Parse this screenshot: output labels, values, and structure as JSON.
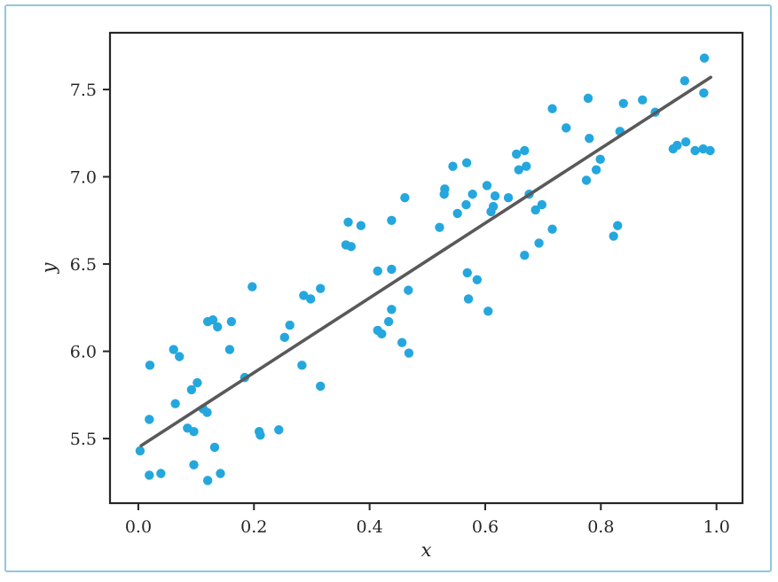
{
  "page": {
    "background_color": "#ffffff",
    "frame_color": "#8ec8de"
  },
  "chart_data": {
    "type": "scatter",
    "title": "",
    "xlabel": "x",
    "ylabel": "y",
    "xlim": [
      -0.049,
      1.045
    ],
    "ylim": [
      5.13,
      7.825
    ],
    "x_ticks": [
      0.0,
      0.2,
      0.4,
      0.6,
      0.8,
      1.0
    ],
    "y_ticks": [
      5.5,
      6.0,
      6.5,
      7.0,
      7.5
    ],
    "grid": false,
    "legend": "none",
    "point_color": "#24a7de",
    "line_color": "#595959",
    "spine_color": "#262626",
    "trendline": {
      "x1": 0.005,
      "y1": 5.46,
      "x2": 0.99,
      "y2": 7.57,
      "slope": 2.14,
      "intercept": 5.45
    },
    "points": [
      [
        0.544,
        7.06
      ],
      [
        0.568,
        7.08
      ],
      [
        0.603,
        6.95
      ],
      [
        0.654,
        7.13
      ],
      [
        0.668,
        7.15
      ],
      [
        0.658,
        7.04
      ],
      [
        0.671,
        7.06
      ],
      [
        0.53,
        6.93
      ],
      [
        0.578,
        6.9
      ],
      [
        0.979,
        7.68
      ],
      [
        0.945,
        7.55
      ],
      [
        0.978,
        7.48
      ],
      [
        0.778,
        7.45
      ],
      [
        0.839,
        7.42
      ],
      [
        0.872,
        7.44
      ],
      [
        0.716,
        7.39
      ],
      [
        0.894,
        7.37
      ],
      [
        0.74,
        7.28
      ],
      [
        0.833,
        7.26
      ],
      [
        0.78,
        7.22
      ],
      [
        0.925,
        7.16
      ],
      [
        0.932,
        7.18
      ],
      [
        0.947,
        7.2
      ],
      [
        0.963,
        7.15
      ],
      [
        0.977,
        7.16
      ],
      [
        0.989,
        7.15
      ],
      [
        0.799,
        7.1
      ],
      [
        0.792,
        7.04
      ],
      [
        0.775,
        6.98
      ],
      [
        0.461,
        6.88
      ],
      [
        0.529,
        6.9
      ],
      [
        0.617,
        6.89
      ],
      [
        0.64,
        6.88
      ],
      [
        0.567,
        6.84
      ],
      [
        0.614,
        6.83
      ],
      [
        0.61,
        6.8
      ],
      [
        0.552,
        6.79
      ],
      [
        0.363,
        6.74
      ],
      [
        0.385,
        6.72
      ],
      [
        0.438,
        6.75
      ],
      [
        0.521,
        6.71
      ],
      [
        0.676,
        6.9
      ],
      [
        0.698,
        6.84
      ],
      [
        0.687,
        6.81
      ],
      [
        0.668,
        6.55
      ],
      [
        0.716,
        6.7
      ],
      [
        0.693,
        6.62
      ],
      [
        0.829,
        6.72
      ],
      [
        0.822,
        6.66
      ],
      [
        0.359,
        6.61
      ],
      [
        0.368,
        6.6
      ],
      [
        0.414,
        6.46
      ],
      [
        0.438,
        6.47
      ],
      [
        0.569,
        6.45
      ],
      [
        0.586,
        6.41
      ],
      [
        0.467,
        6.35
      ],
      [
        0.571,
        6.3
      ],
      [
        0.438,
        6.24
      ],
      [
        0.605,
        6.23
      ],
      [
        0.433,
        6.17
      ],
      [
        0.414,
        6.12
      ],
      [
        0.421,
        6.1
      ],
      [
        0.456,
        6.05
      ],
      [
        0.468,
        5.99
      ],
      [
        0.197,
        6.37
      ],
      [
        0.286,
        6.32
      ],
      [
        0.298,
        6.3
      ],
      [
        0.315,
        6.36
      ],
      [
        0.12,
        6.17
      ],
      [
        0.129,
        6.18
      ],
      [
        0.137,
        6.14
      ],
      [
        0.161,
        6.17
      ],
      [
        0.262,
        6.15
      ],
      [
        0.253,
        6.08
      ],
      [
        0.061,
        6.01
      ],
      [
        0.158,
        6.01
      ],
      [
        0.071,
        5.97
      ],
      [
        0.02,
        5.92
      ],
      [
        0.283,
        5.92
      ],
      [
        0.102,
        5.82
      ],
      [
        0.092,
        5.78
      ],
      [
        0.184,
        5.85
      ],
      [
        0.315,
        5.8
      ],
      [
        0.064,
        5.7
      ],
      [
        0.112,
        5.67
      ],
      [
        0.119,
        5.65
      ],
      [
        0.019,
        5.61
      ],
      [
        0.085,
        5.56
      ],
      [
        0.096,
        5.54
      ],
      [
        0.209,
        5.54
      ],
      [
        0.211,
        5.52
      ],
      [
        0.243,
        5.55
      ],
      [
        0.003,
        5.43
      ],
      [
        0.132,
        5.45
      ],
      [
        0.096,
        5.35
      ],
      [
        0.019,
        5.29
      ],
      [
        0.039,
        5.3
      ],
      [
        0.12,
        5.26
      ],
      [
        0.142,
        5.3
      ]
    ]
  }
}
